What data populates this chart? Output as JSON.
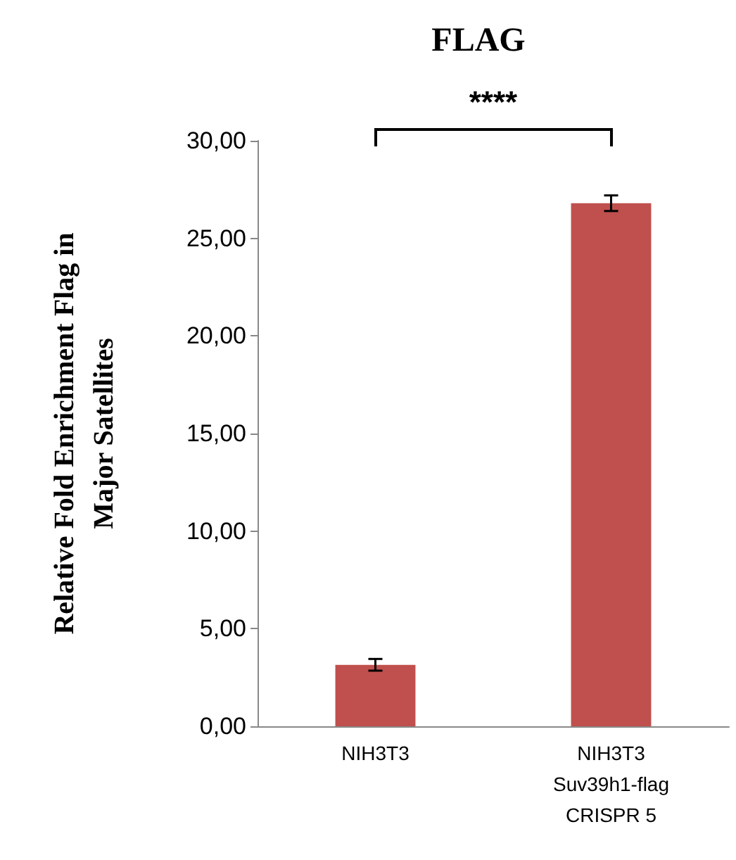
{
  "chart_data": {
    "type": "bar",
    "title": "FLAG",
    "ylabel": "Relative Fold Enrichment Flag in\nMajor Satellites",
    "categories": [
      "NIH3T3",
      "NIH3T3\nSuv39h1-flag\nCRISPR 5"
    ],
    "values": [
      3.15,
      26.8
    ],
    "color": "#c0504d",
    "errors": [
      0.3,
      0.4
    ],
    "ylim": [
      0,
      30
    ],
    "yticks": [
      {
        "value": 0,
        "label": "0,00"
      },
      {
        "value": 5,
        "label": "5,00"
      },
      {
        "value": 10,
        "label": "10,00"
      },
      {
        "value": 15,
        "label": "15,00"
      },
      {
        "value": 20,
        "label": "20,00"
      },
      {
        "value": 25,
        "label": "25,00"
      },
      {
        "value": 30,
        "label": "30,00"
      }
    ],
    "annotations": [
      "****"
    ],
    "grid": false
  }
}
